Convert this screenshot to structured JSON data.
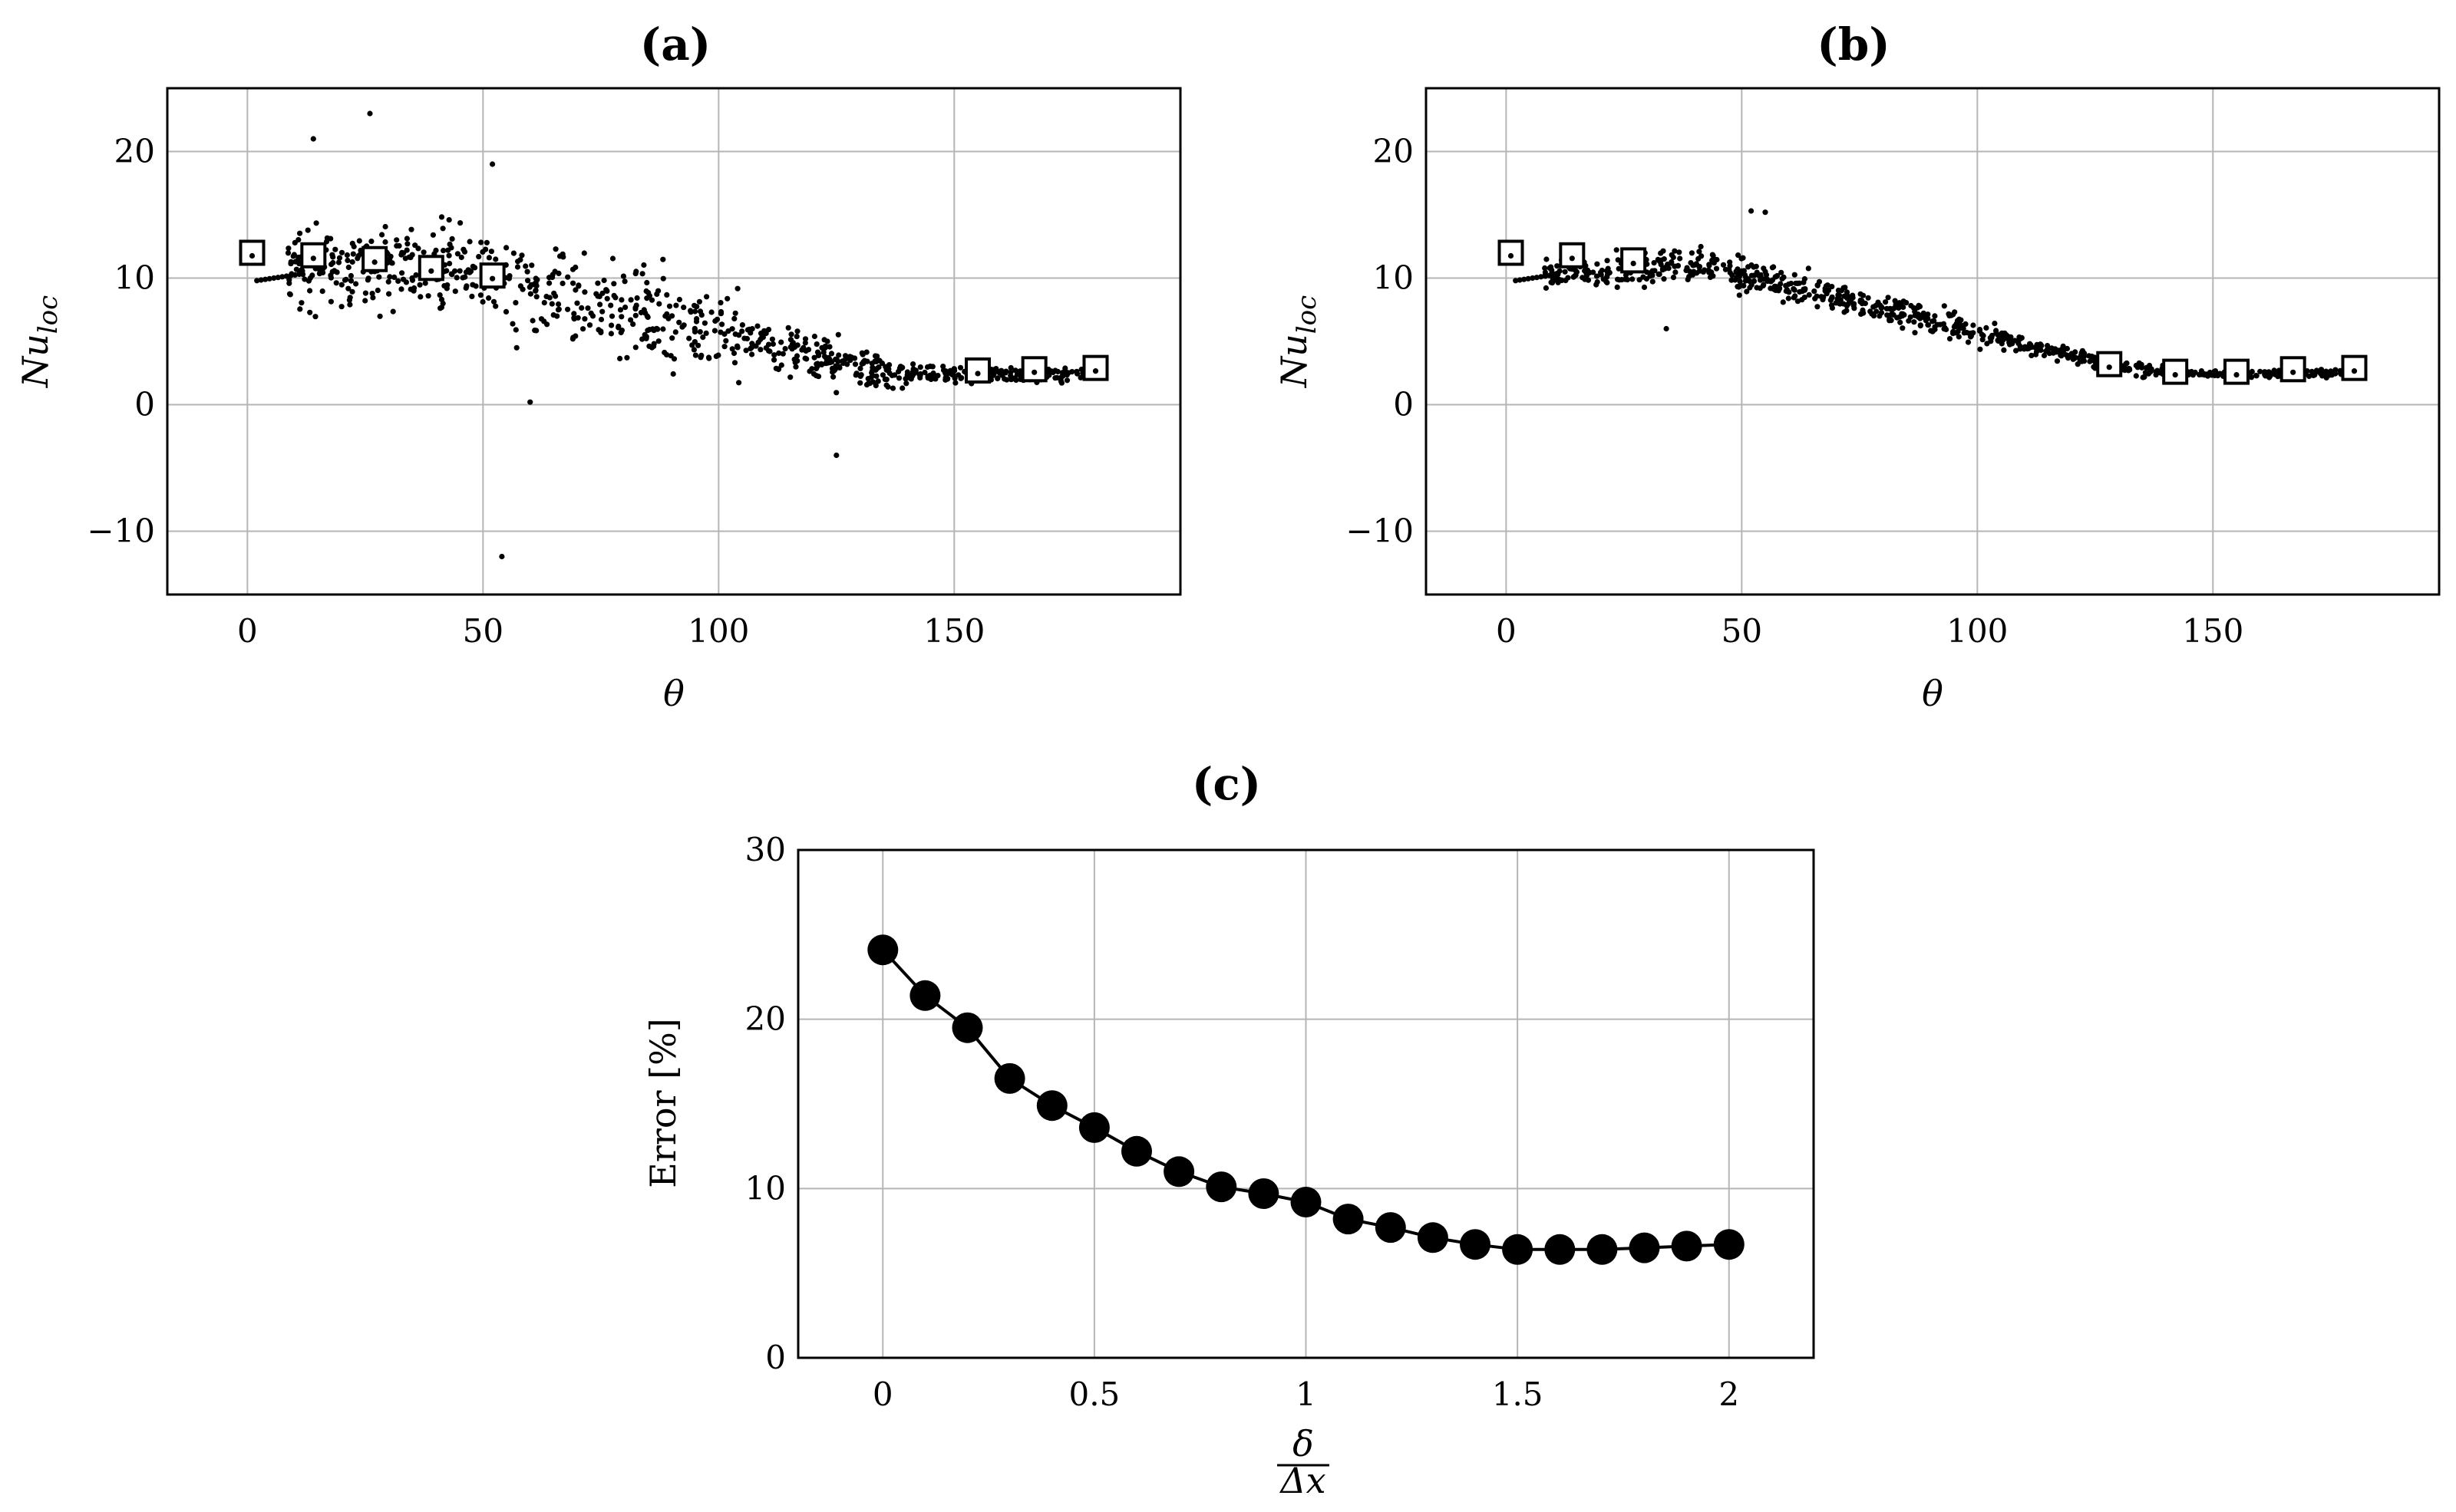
{
  "chart_data": [
    {
      "id": "a",
      "title": "(a)",
      "type": "scatter",
      "xlabel": "θ",
      "ylabel_base": "Nu",
      "ylabel_sub": "loc",
      "xlim": [
        -17,
        198
      ],
      "ylim": [
        -15,
        25
      ],
      "xticks": [
        0,
        50,
        100,
        150
      ],
      "yticks": [
        -10,
        0,
        10,
        20
      ],
      "xtick_labels": [
        "0",
        "50",
        "100",
        "150"
      ],
      "ytick_labels": [
        "−10",
        "0",
        "10",
        "20"
      ],
      "grid": true,
      "reference_squares": [
        {
          "x": 1,
          "y": 12
        },
        {
          "x": 14,
          "y": 11.8
        },
        {
          "x": 27,
          "y": 11.5
        },
        {
          "x": 39,
          "y": 10.8
        },
        {
          "x": 52,
          "y": 10.2
        },
        {
          "x": 155,
          "y": 2.7
        },
        {
          "x": 167,
          "y": 2.8
        },
        {
          "x": 180,
          "y": 2.9
        }
      ],
      "scatter_profile": {
        "spread": "high",
        "outliers": [
          {
            "x": 54,
            "y": -12
          },
          {
            "x": 125,
            "y": -4
          },
          {
            "x": 60,
            "y": 0.2
          },
          {
            "x": 26,
            "y": 23
          },
          {
            "x": 14,
            "y": 21
          },
          {
            "x": 52,
            "y": 19
          }
        ]
      }
    },
    {
      "id": "b",
      "title": "(b)",
      "type": "scatter",
      "xlabel": "θ",
      "ylabel_base": "Nu",
      "ylabel_sub": "loc",
      "xlim": [
        -17,
        198
      ],
      "ylim": [
        -15,
        25
      ],
      "xticks": [
        0,
        50,
        100,
        150
      ],
      "yticks": [
        -10,
        0,
        10,
        20
      ],
      "xtick_labels": [
        "0",
        "50",
        "100",
        "150"
      ],
      "ytick_labels": [
        "−10",
        "0",
        "10",
        "20"
      ],
      "grid": true,
      "reference_squares": [
        {
          "x": 1,
          "y": 12
        },
        {
          "x": 14,
          "y": 11.8
        },
        {
          "x": 27,
          "y": 11.4
        },
        {
          "x": 128,
          "y": 3.2
        },
        {
          "x": 142,
          "y": 2.6
        },
        {
          "x": 155,
          "y": 2.6
        },
        {
          "x": 167,
          "y": 2.8
        },
        {
          "x": 180,
          "y": 2.9
        }
      ],
      "scatter_profile": {
        "spread": "low",
        "outliers": [
          {
            "x": 34,
            "y": 6
          },
          {
            "x": 52,
            "y": 15.3
          },
          {
            "x": 55,
            "y": 15.2
          }
        ]
      }
    },
    {
      "id": "c",
      "title": "(c)",
      "type": "line",
      "xlabel_num": "δ",
      "xlabel_den": "Δx",
      "ylabel": "Error [%]",
      "xlim": [
        -0.2,
        2.2
      ],
      "ylim": [
        0,
        30
      ],
      "xticks": [
        0,
        0.5,
        1,
        1.5,
        2
      ],
      "yticks": [
        0,
        10,
        20,
        30
      ],
      "xtick_labels": [
        "0",
        "0.5",
        "1",
        "1.5",
        "2"
      ],
      "ytick_labels": [
        "0",
        "10",
        "20",
        "30"
      ],
      "grid": true,
      "x": [
        0,
        0.1,
        0.2,
        0.3,
        0.4,
        0.5,
        0.6,
        0.7,
        0.8,
        0.9,
        1.0,
        1.1,
        1.2,
        1.3,
        1.4,
        1.5,
        1.6,
        1.7,
        1.8,
        1.9,
        2.0
      ],
      "y": [
        24.1,
        21.4,
        19.5,
        16.5,
        14.9,
        13.6,
        12.2,
        11.0,
        10.1,
        9.7,
        9.2,
        8.2,
        7.7,
        7.1,
        6.7,
        6.4,
        6.4,
        6.4,
        6.5,
        6.6,
        6.7
      ]
    }
  ]
}
